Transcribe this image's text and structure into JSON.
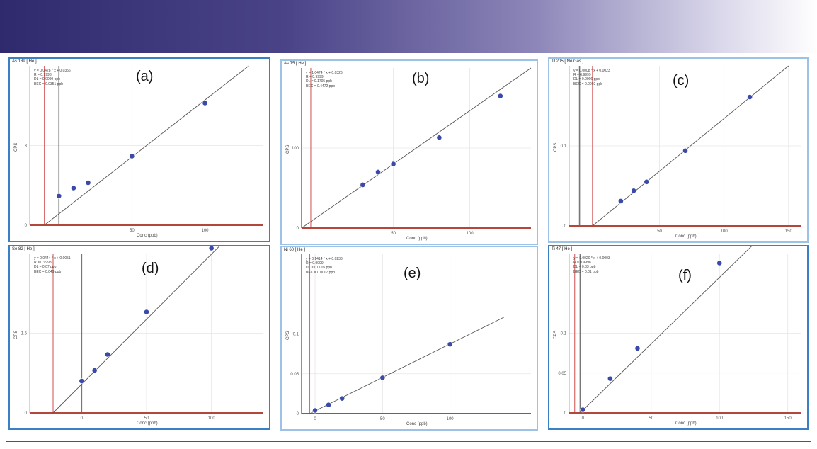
{
  "colors": {
    "banner_start": "#2f2a6e",
    "panel_border_dark": "#3b7fc4",
    "panel_border_light": "#9cc3e6",
    "point": "#3b4aa8",
    "fit_line": "#555555",
    "x_axis": "#b5473a",
    "cursor_gray": "#777777",
    "cursor_red": "#d96b6b"
  },
  "chart_data": [
    {
      "type": "scatter",
      "panel_label": "(a)",
      "title": "As 189 [ He ]",
      "stats": [
        "y = 0.0428 * x + 0.0356",
        "R = 0.9998",
        "DL = 0.0099 ppb",
        "BEC = 0.0351 ppb"
      ],
      "xlabel": "Conc (ppb)",
      "ylabel": "CPS",
      "xlim": [
        -20,
        140
      ],
      "ylim": [
        0,
        6
      ],
      "xticks": [
        50,
        100
      ],
      "yticks": [
        0,
        3
      ],
      "points_x": [
        0,
        10,
        20,
        50,
        100
      ],
      "points_y": [
        1.1,
        1.4,
        1.6,
        2.6,
        4.6
      ],
      "fit": [
        [
          -10,
          0
        ],
        [
          130,
          6
        ]
      ],
      "cursors": [
        {
          "x": 0,
          "color": "gray"
        },
        {
          "x": -10,
          "color": "red"
        }
      ]
    },
    {
      "type": "scatter",
      "panel_label": "(b)",
      "title": "As 75 [ He ]",
      "stats": [
        "y = 1.0474 * x + 0.0326",
        "R = 0.9999",
        "DL = 0.1705 ppb",
        "BEC = 0.4472 ppb"
      ],
      "xlabel": "Conc (ppb)",
      "ylabel": "CPS",
      "xlim": [
        -10,
        140
      ],
      "ylim": [
        0,
        200
      ],
      "xticks": [
        50,
        100
      ],
      "yticks": [
        0,
        100
      ],
      "points_x": [
        30,
        40,
        50,
        80,
        120
      ],
      "points_y": [
        54,
        70,
        80,
        113,
        165
      ],
      "fit": [
        [
          -10,
          0
        ],
        [
          140,
          200
        ]
      ],
      "cursors": [
        {
          "x": -10,
          "color": "gray"
        },
        {
          "x": -4,
          "color": "red"
        }
      ]
    },
    {
      "type": "scatter",
      "panel_label": "(c)",
      "title": "Tl 205 [ No Gas ]",
      "stats": [
        "y = 0.0008 * x + 0.0023",
        "R = 0.9999",
        "DL = 0.0006 ppb",
        "BEC = 0.0002 ppb"
      ],
      "xlabel": "Conc (ppb)",
      "ylabel": "CPS",
      "xlim": [
        -20,
        160
      ],
      "ylim": [
        0,
        0.2
      ],
      "xticks": [
        50,
        100,
        150
      ],
      "yticks": [
        0,
        0.1
      ],
      "points_x": [
        20,
        30,
        40,
        70,
        120
      ],
      "points_y": [
        0.031,
        0.044,
        0.055,
        0.094,
        0.161
      ],
      "fit": [
        [
          -2,
          0
        ],
        [
          150,
          0.2
        ]
      ],
      "cursors": [
        {
          "x": -12,
          "color": "gray"
        },
        {
          "x": -2,
          "color": "red"
        }
      ]
    },
    {
      "type": "scatter",
      "panel_label": "(d)",
      "title": "Se 82 [ He ]",
      "stats": [
        "y = 0.0444 * x + 0.0051",
        "R = 0.9998",
        "DL = 0.07 ppb",
        "BEC = 0.049 ppb"
      ],
      "xlabel": "Conc (ppb)",
      "ylabel": "CPS",
      "xlim": [
        -40,
        140
      ],
      "ylim": [
        0,
        3
      ],
      "xticks": [
        0,
        50,
        100
      ],
      "yticks": [
        0,
        1.5
      ],
      "points_x": [
        0,
        10,
        20,
        50,
        100
      ],
      "points_y": [
        0.6,
        0.8,
        1.1,
        1.9,
        3.1
      ],
      "fit": [
        [
          -22,
          0
        ],
        [
          125,
          3.6
        ]
      ],
      "cursors": [
        {
          "x": 0,
          "color": "gray"
        },
        {
          "x": -22,
          "color": "red"
        }
      ]
    },
    {
      "type": "scatter",
      "panel_label": "(e)",
      "title": "Ni 60 [ He ]",
      "stats": [
        "y = 0.1414 * x + 0.0238",
        "R = 0.9999",
        "DL = 0.0005 ppb",
        "BEC = 0.0007 ppb"
      ],
      "xlabel": "Conc (ppb)",
      "ylabel": "CPS",
      "xlim": [
        -10,
        160
      ],
      "ylim": [
        0,
        0.2
      ],
      "xticks": [
        0,
        50,
        100
      ],
      "yticks": [
        0,
        0.05,
        0.1
      ],
      "points_x": [
        0,
        10,
        20,
        50,
        100
      ],
      "points_y": [
        0.004,
        0.011,
        0.019,
        0.045,
        0.087
      ],
      "fit": [
        [
          -4,
          0
        ],
        [
          140,
          0.121
        ]
      ],
      "cursors": [
        {
          "x": -10,
          "color": "gray"
        },
        {
          "x": -4,
          "color": "red"
        }
      ]
    },
    {
      "type": "scatter",
      "panel_label": "(f)",
      "title": "Ti 47 [ He ]",
      "stats": [
        "y = 0.0020 * x + 0.0003",
        "R = 0.9998",
        "DL = 0.03 ppb",
        "BEC = 0.01 ppb"
      ],
      "xlabel": "Conc (ppb)",
      "ylabel": "CPS",
      "xlim": [
        -10,
        160
      ],
      "ylim": [
        0,
        0.2
      ],
      "xticks": [
        0,
        50,
        100,
        150
      ],
      "yticks": [
        0,
        0.05,
        0.1
      ],
      "points_x": [
        0,
        20,
        40,
        100
      ],
      "points_y": [
        0.004,
        0.043,
        0.081,
        0.188
      ],
      "fit": [
        [
          -2,
          0
        ],
        [
          160,
          0.27
        ]
      ],
      "cursors": [
        {
          "x": -2,
          "color": "gray"
        },
        {
          "x": -6,
          "color": "red"
        }
      ]
    }
  ]
}
